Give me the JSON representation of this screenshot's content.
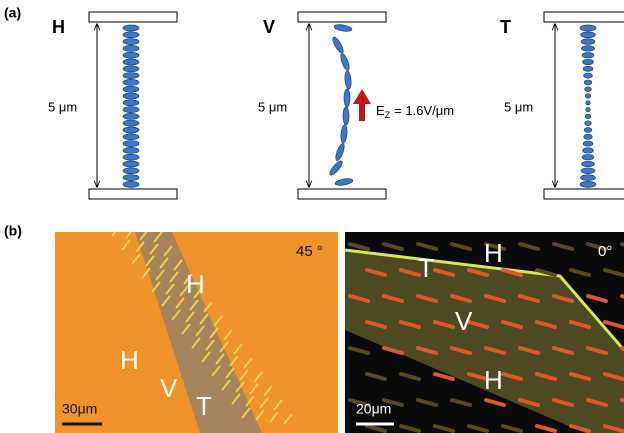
{
  "panel_a": {
    "label": "(a)",
    "cells": [
      {
        "label": "H",
        "thickness": "5 μm"
      },
      {
        "label": "V",
        "thickness": "5 μm",
        "field": {
          "symbol": "E",
          "subscript": "Z",
          "value": "= 1.6V/μm"
        }
      },
      {
        "label": "T",
        "thickness": "5 μm"
      }
    ]
  },
  "panel_b": {
    "label": "(b)",
    "images": [
      {
        "angle": "45 °",
        "labels": [
          "H",
          "H",
          "V",
          "T"
        ],
        "scale_bar": "30μm"
      },
      {
        "angle": "0°",
        "labels": [
          "T",
          "H",
          "V",
          "H"
        ],
        "scale_bar": "20μm"
      }
    ]
  }
}
